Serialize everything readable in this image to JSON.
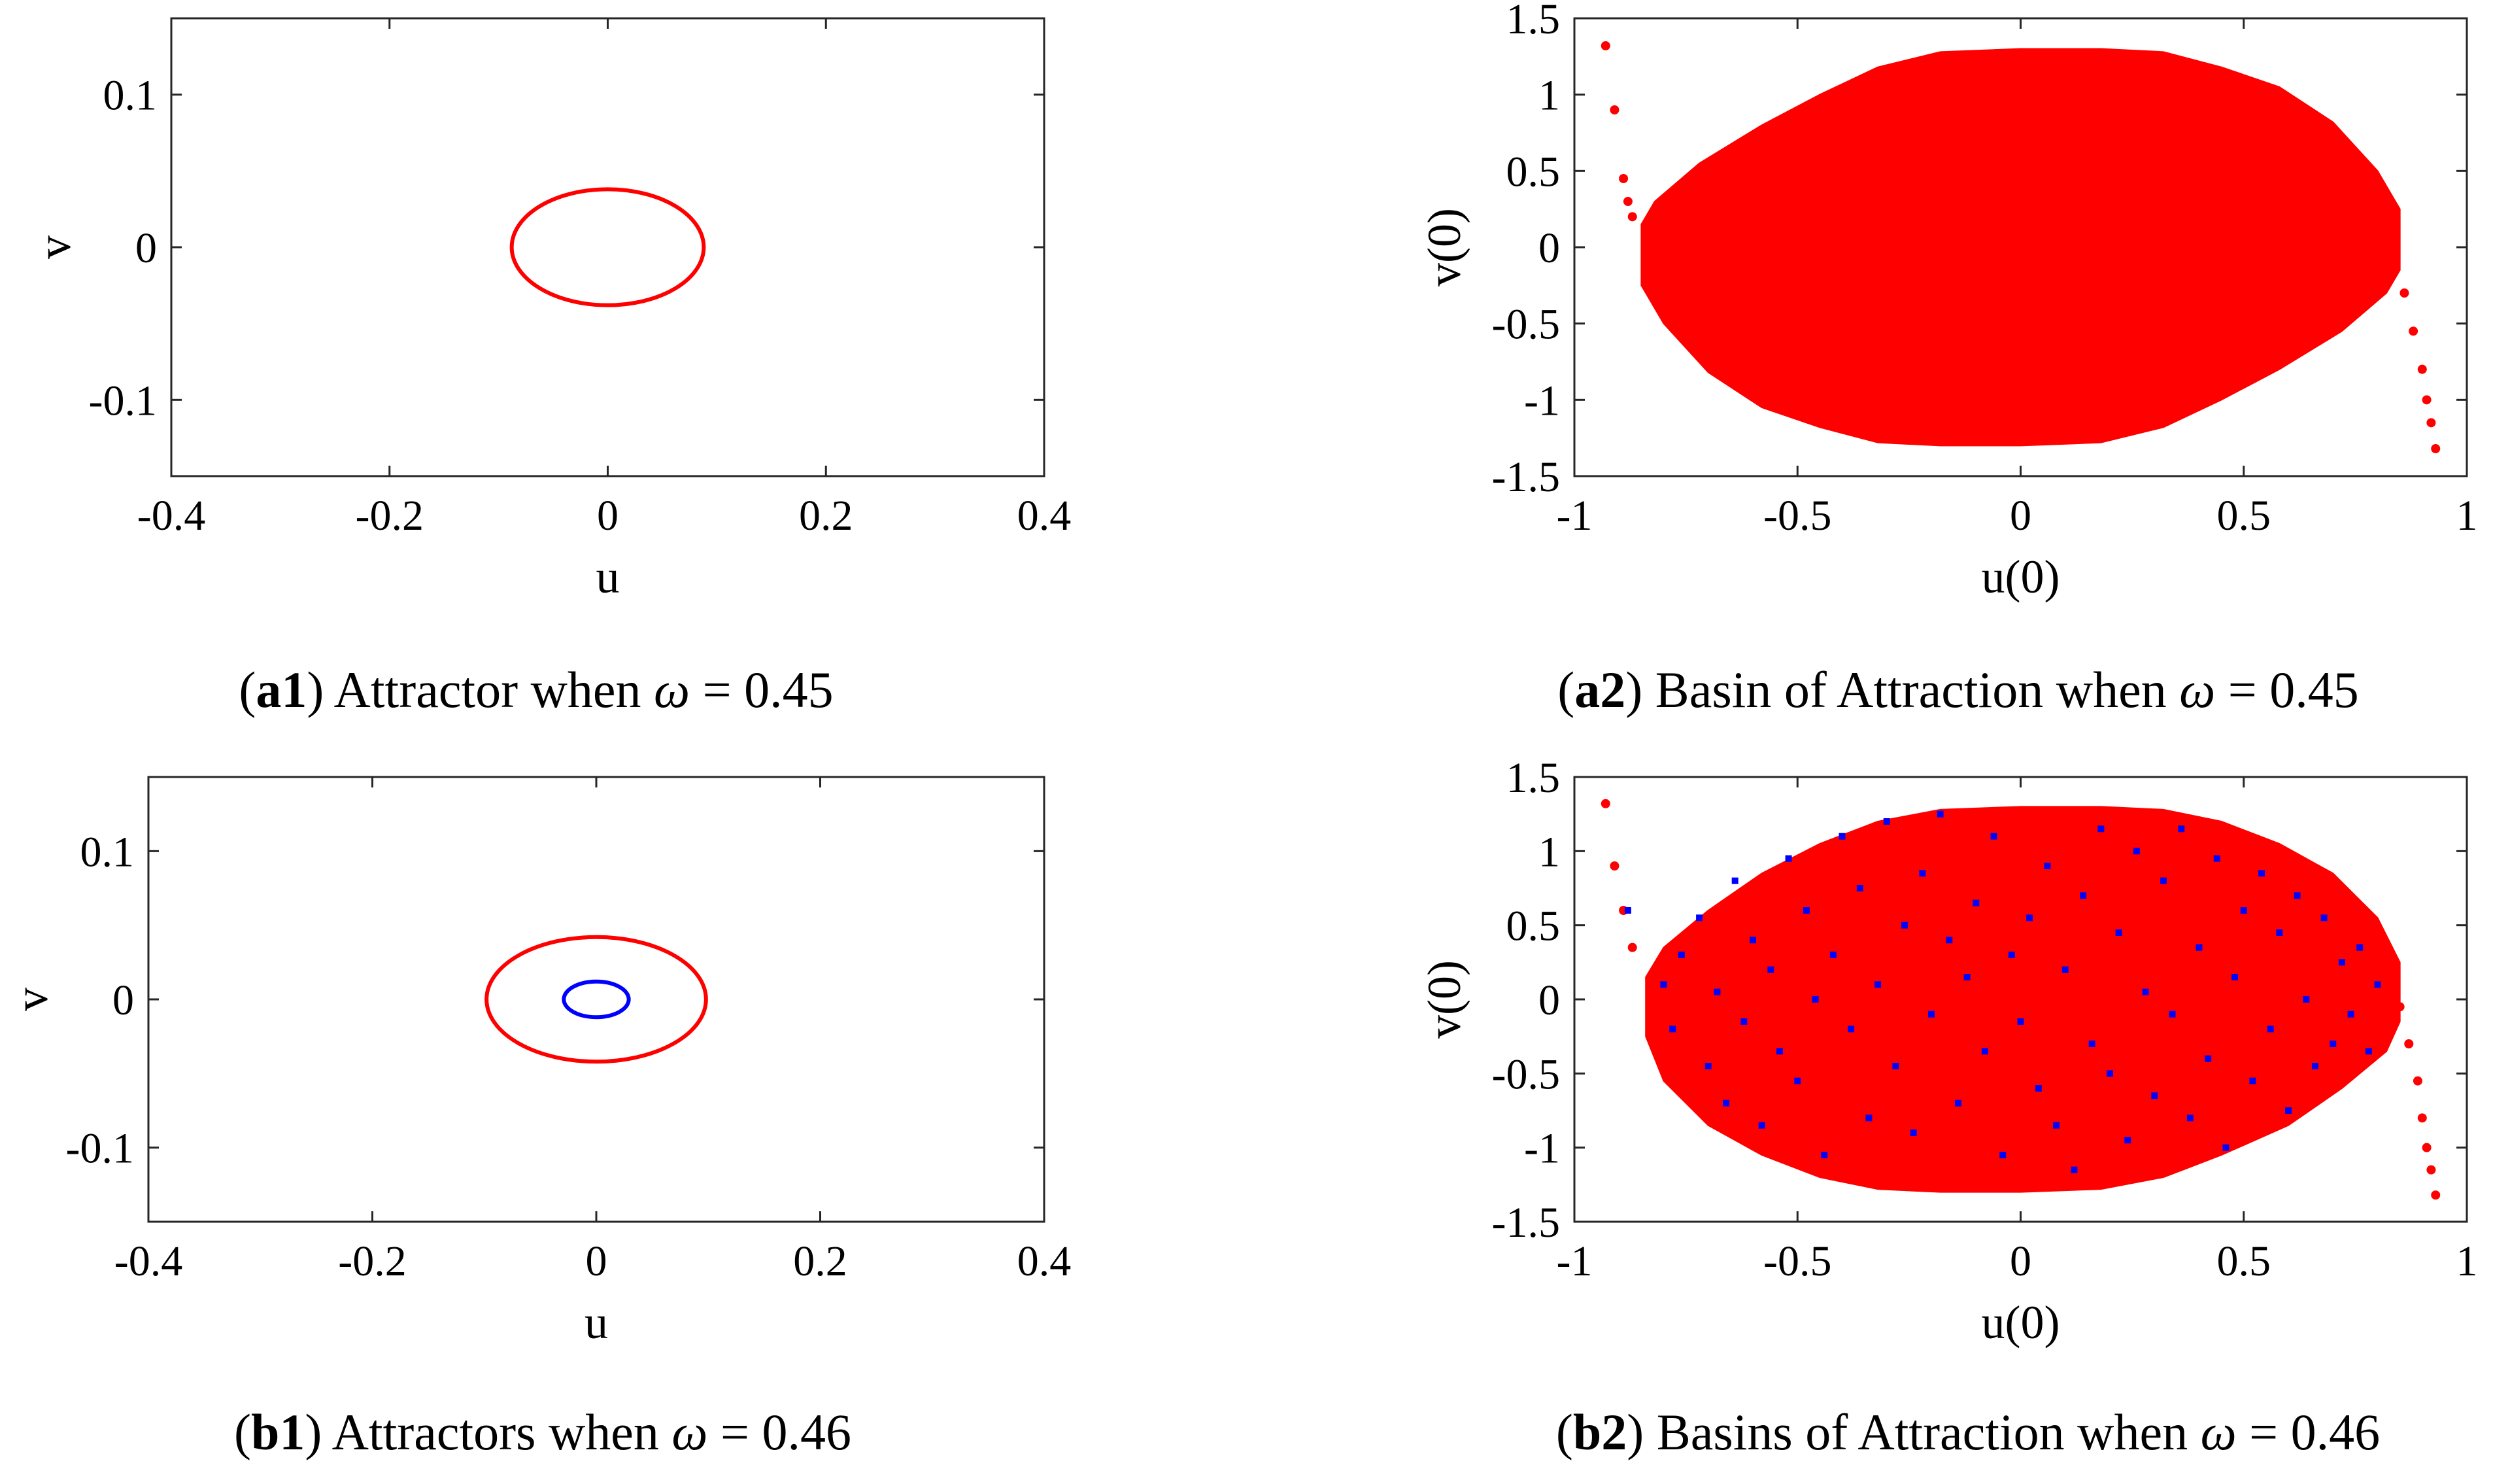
{
  "colors": {
    "red": "#ff0000",
    "blue": "#0000ff",
    "axis": "#262626"
  },
  "chart_data": [
    {
      "id": "a1",
      "type": "line",
      "xlabel": "u",
      "ylabel": "v",
      "xlim": [
        -0.4,
        0.4
      ],
      "ylim": [
        -0.15,
        0.15
      ],
      "xticks": [
        "-0.4",
        "-0.2",
        "0",
        "0.2",
        "0.4"
      ],
      "xtick_values": [
        -0.4,
        -0.2,
        0,
        0.2,
        0.4
      ],
      "yticks": [
        "0.1",
        "0",
        "-0.1"
      ],
      "ytick_values": [
        0.1,
        0,
        -0.1
      ],
      "series": [
        {
          "name": "attractor",
          "color": "#ff0000",
          "shape": "ellipse",
          "center": [
            0,
            0
          ],
          "u_amplitude": 0.088,
          "v_amplitude": 0.038
        }
      ],
      "caption": {
        "label": "a1",
        "text": "Attractor when",
        "symbol": "ω",
        "value": "= 0.45"
      }
    },
    {
      "id": "a2",
      "type": "scatter",
      "xlabel": "u(0)",
      "ylabel": "v(0)",
      "xlim": [
        -1,
        1
      ],
      "ylim": [
        -1.5,
        1.5
      ],
      "xticks": [
        "-1",
        "-0.5",
        "0",
        "0.5",
        "1"
      ],
      "xtick_values": [
        -1,
        -0.5,
        0,
        0.5,
        1
      ],
      "yticks": [
        "1.5",
        "1",
        "0.5",
        "0",
        "-0.5",
        "-1",
        "-1.5"
      ],
      "ytick_values": [
        1.5,
        1,
        0.5,
        0,
        -0.5,
        -1,
        -1.5
      ],
      "series": [
        {
          "name": "basin (red attractor)",
          "color": "#ff0000",
          "region_outline": [
            [
              -0.85,
              0.15
            ],
            [
              -0.82,
              0.3
            ],
            [
              -0.72,
              0.55
            ],
            [
              -0.58,
              0.8
            ],
            [
              -0.45,
              1.0
            ],
            [
              -0.32,
              1.18
            ],
            [
              -0.18,
              1.28
            ],
            [
              0.0,
              1.3
            ],
            [
              0.18,
              1.3
            ],
            [
              0.32,
              1.28
            ],
            [
              0.45,
              1.18
            ],
            [
              0.58,
              1.05
            ],
            [
              0.7,
              0.82
            ],
            [
              0.8,
              0.5
            ],
            [
              0.85,
              0.25
            ],
            [
              0.85,
              -0.15
            ],
            [
              0.82,
              -0.3
            ],
            [
              0.72,
              -0.55
            ],
            [
              0.58,
              -0.8
            ],
            [
              0.45,
              -1.0
            ],
            [
              0.32,
              -1.18
            ],
            [
              0.18,
              -1.28
            ],
            [
              0.0,
              -1.3
            ],
            [
              -0.18,
              -1.3
            ],
            [
              -0.32,
              -1.28
            ],
            [
              -0.45,
              -1.18
            ],
            [
              -0.58,
              -1.05
            ],
            [
              -0.7,
              -0.82
            ],
            [
              -0.8,
              -0.5
            ],
            [
              -0.85,
              -0.25
            ]
          ],
          "tail_points": [
            [
              -0.93,
              1.32
            ],
            [
              -0.91,
              0.9
            ],
            [
              -0.89,
              0.45
            ],
            [
              -0.88,
              0.3
            ],
            [
              -0.87,
              0.2
            ],
            [
              0.84,
              -0.1
            ],
            [
              0.86,
              -0.3
            ],
            [
              0.88,
              -0.55
            ],
            [
              0.9,
              -0.8
            ],
            [
              0.91,
              -1.0
            ],
            [
              0.92,
              -1.15
            ],
            [
              0.93,
              -1.32
            ]
          ]
        }
      ],
      "caption": {
        "label": "a2",
        "text": "Basin of Attraction when",
        "symbol": "ω",
        "value": "= 0.45"
      }
    },
    {
      "id": "b1",
      "type": "line",
      "xlabel": "u",
      "ylabel": "v",
      "xlim": [
        -0.4,
        0.4
      ],
      "ylim": [
        -0.15,
        0.15
      ],
      "xticks": [
        "-0.4",
        "-0.2",
        "0",
        "0.2",
        "0.4"
      ],
      "xtick_values": [
        -0.4,
        -0.2,
        0,
        0.2,
        0.4
      ],
      "yticks": [
        "0.1",
        "0",
        "-0.1"
      ],
      "ytick_values": [
        0.1,
        0,
        -0.1
      ],
      "series": [
        {
          "name": "large attractor",
          "color": "#ff0000",
          "shape": "ellipse",
          "center": [
            0,
            0
          ],
          "u_amplitude": 0.098,
          "v_amplitude": 0.042
        },
        {
          "name": "small attractor",
          "color": "#0000ff",
          "shape": "ellipse",
          "center": [
            0,
            0
          ],
          "u_amplitude": 0.029,
          "v_amplitude": 0.012
        }
      ],
      "caption": {
        "label": "b1",
        "text": "Attractors when",
        "symbol": "ω",
        "value": "= 0.46"
      }
    },
    {
      "id": "b2",
      "type": "scatter",
      "xlabel": "u(0)",
      "ylabel": "v(0)",
      "xlim": [
        -1,
        1
      ],
      "ylim": [
        -1.5,
        1.5
      ],
      "xticks": [
        "-1",
        "-0.5",
        "0",
        "0.5",
        "1"
      ],
      "xtick_values": [
        -1,
        -0.5,
        0,
        0.5,
        1
      ],
      "yticks": [
        "1.5",
        "1",
        "0.5",
        "0",
        "-0.5",
        "-1",
        "-1.5"
      ],
      "ytick_values": [
        1.5,
        1,
        0.5,
        0,
        -0.5,
        -1,
        -1.5
      ],
      "series": [
        {
          "name": "basin (red attractor)",
          "color": "#ff0000",
          "region_outline": [
            [
              -0.84,
              0.15
            ],
            [
              -0.8,
              0.35
            ],
            [
              -0.7,
              0.6
            ],
            [
              -0.58,
              0.85
            ],
            [
              -0.45,
              1.05
            ],
            [
              -0.32,
              1.2
            ],
            [
              -0.18,
              1.28
            ],
            [
              0.0,
              1.3
            ],
            [
              0.18,
              1.3
            ],
            [
              0.32,
              1.28
            ],
            [
              0.45,
              1.2
            ],
            [
              0.58,
              1.05
            ],
            [
              0.7,
              0.85
            ],
            [
              0.8,
              0.55
            ],
            [
              0.85,
              0.25
            ],
            [
              0.85,
              -0.15
            ],
            [
              0.82,
              -0.35
            ],
            [
              0.72,
              -0.6
            ],
            [
              0.6,
              -0.85
            ],
            [
              0.45,
              -1.05
            ],
            [
              0.32,
              -1.2
            ],
            [
              0.18,
              -1.28
            ],
            [
              0.0,
              -1.3
            ],
            [
              -0.18,
              -1.3
            ],
            [
              -0.32,
              -1.28
            ],
            [
              -0.45,
              -1.2
            ],
            [
              -0.58,
              -1.05
            ],
            [
              -0.7,
              -0.85
            ],
            [
              -0.8,
              -0.55
            ],
            [
              -0.84,
              -0.25
            ]
          ],
          "tail_points": [
            [
              -0.93,
              1.32
            ],
            [
              -0.91,
              0.9
            ],
            [
              -0.89,
              0.6
            ],
            [
              -0.87,
              0.35
            ],
            [
              0.85,
              -0.05
            ],
            [
              0.87,
              -0.3
            ],
            [
              0.89,
              -0.55
            ],
            [
              0.9,
              -0.8
            ],
            [
              0.91,
              -1.0
            ],
            [
              0.92,
              -1.15
            ],
            [
              0.93,
              -1.32
            ]
          ]
        },
        {
          "name": "basin (blue attractor)",
          "color": "#0000ff",
          "points": [
            [
              -0.88,
              0.6
            ],
            [
              -0.8,
              0.1
            ],
            [
              -0.78,
              -0.2
            ],
            [
              -0.76,
              0.3
            ],
            [
              -0.72,
              0.55
            ],
            [
              -0.7,
              -0.45
            ],
            [
              -0.68,
              0.05
            ],
            [
              -0.66,
              -0.7
            ],
            [
              -0.64,
              0.8
            ],
            [
              -0.62,
              -0.15
            ],
            [
              -0.6,
              0.4
            ],
            [
              -0.58,
              -0.85
            ],
            [
              -0.56,
              0.2
            ],
            [
              -0.54,
              -0.35
            ],
            [
              -0.52,
              0.95
            ],
            [
              -0.5,
              -0.55
            ],
            [
              -0.48,
              0.6
            ],
            [
              -0.46,
              0.0
            ],
            [
              -0.44,
              -1.05
            ],
            [
              -0.42,
              0.3
            ],
            [
              -0.4,
              1.1
            ],
            [
              -0.38,
              -0.2
            ],
            [
              -0.36,
              0.75
            ],
            [
              -0.34,
              -0.8
            ],
            [
              -0.32,
              0.1
            ],
            [
              -0.3,
              1.2
            ],
            [
              -0.28,
              -0.45
            ],
            [
              -0.26,
              0.5
            ],
            [
              -0.24,
              -0.9
            ],
            [
              -0.22,
              0.85
            ],
            [
              -0.2,
              -0.1
            ],
            [
              -0.18,
              1.25
            ],
            [
              -0.16,
              0.4
            ],
            [
              -0.14,
              -0.7
            ],
            [
              -0.12,
              0.15
            ],
            [
              -0.1,
              0.65
            ],
            [
              -0.08,
              -0.35
            ],
            [
              -0.06,
              1.1
            ],
            [
              -0.04,
              -1.05
            ],
            [
              -0.02,
              0.3
            ],
            [
              0.0,
              -0.15
            ],
            [
              0.02,
              0.55
            ],
            [
              0.04,
              -0.6
            ],
            [
              0.06,
              0.9
            ],
            [
              0.08,
              -0.85
            ],
            [
              0.1,
              0.2
            ],
            [
              0.12,
              -1.15
            ],
            [
              0.14,
              0.7
            ],
            [
              0.16,
              -0.3
            ],
            [
              0.18,
              1.15
            ],
            [
              0.2,
              -0.5
            ],
            [
              0.22,
              0.45
            ],
            [
              0.24,
              -0.95
            ],
            [
              0.26,
              1.0
            ],
            [
              0.28,
              0.05
            ],
            [
              0.3,
              -0.65
            ],
            [
              0.32,
              0.8
            ],
            [
              0.34,
              -0.1
            ],
            [
              0.36,
              1.15
            ],
            [
              0.38,
              -0.8
            ],
            [
              0.4,
              0.35
            ],
            [
              0.42,
              -0.4
            ],
            [
              0.44,
              0.95
            ],
            [
              0.46,
              -1.0
            ],
            [
              0.48,
              0.15
            ],
            [
              0.5,
              0.6
            ],
            [
              0.52,
              -0.55
            ],
            [
              0.54,
              0.85
            ],
            [
              0.56,
              -0.2
            ],
            [
              0.58,
              0.45
            ],
            [
              0.6,
              -0.75
            ],
            [
              0.62,
              0.7
            ],
            [
              0.64,
              0.0
            ],
            [
              0.66,
              -0.45
            ],
            [
              0.68,
              0.55
            ],
            [
              0.7,
              -0.3
            ],
            [
              0.72,
              0.25
            ],
            [
              0.74,
              -0.1
            ],
            [
              0.76,
              0.35
            ],
            [
              0.78,
              -0.35
            ],
            [
              0.8,
              0.1
            ]
          ]
        }
      ],
      "caption": {
        "label": "b2",
        "text": "Basins of Attraction when",
        "symbol": "ω",
        "value": "= 0.46"
      }
    }
  ]
}
